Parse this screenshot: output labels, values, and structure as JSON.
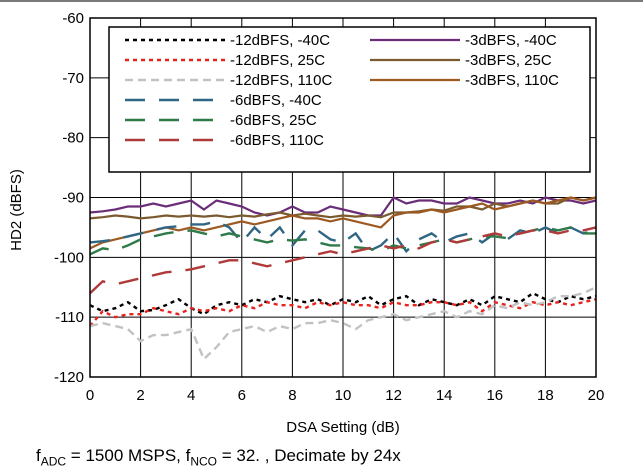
{
  "chart_data": {
    "type": "line",
    "xlabel": "DSA Setting (dB)",
    "ylabel": "HD2 (dBFS)",
    "xlim": [
      0,
      20
    ],
    "ylim": [
      -120,
      -60
    ],
    "xticks": [
      "0",
      "2",
      "4",
      "6",
      "8",
      "10",
      "12",
      "14",
      "16",
      "18",
      "20"
    ],
    "yticks": [
      "-60",
      "-70",
      "-80",
      "-90",
      "-100",
      "-110",
      "-120"
    ],
    "grid": true,
    "legend_position": "top-right",
    "series": [
      {
        "name": "-12dBFS, -40C",
        "color": "#000000",
        "dash": "dot",
        "x": [
          0,
          0.5,
          1,
          1.5,
          2,
          2.5,
          3,
          3.5,
          4,
          4.5,
          5,
          5.5,
          6,
          6.5,
          7,
          7.5,
          8,
          8.5,
          9,
          9.5,
          10,
          10.5,
          11,
          11.5,
          12,
          12.5,
          13,
          13.5,
          14,
          14.5,
          15,
          15.5,
          16,
          16.5,
          17,
          17.5,
          18,
          18.5,
          19,
          19.5,
          20
        ],
        "y": [
          -108,
          -109,
          -108.5,
          -107.5,
          -109,
          -108.8,
          -108,
          -107,
          -108.5,
          -109.5,
          -108,
          -107.5,
          -108,
          -107,
          -107.5,
          -106.5,
          -107,
          -107.5,
          -107,
          -108,
          -107,
          -107.5,
          -106.5,
          -108,
          -107,
          -106.5,
          -108,
          -107,
          -107.5,
          -108,
          -107,
          -108,
          -106.5,
          -107,
          -107.5,
          -106,
          -107,
          -107.5,
          -106.5,
          -107,
          -106.5
        ]
      },
      {
        "name": "-12dBFS, 25C",
        "color": "#e8231e",
        "dash": "dot",
        "x": [
          0,
          0.5,
          1,
          1.5,
          2,
          2.5,
          3,
          3.5,
          4,
          4.5,
          5,
          5.5,
          6,
          6.5,
          7,
          7.5,
          8,
          8.5,
          9,
          9.5,
          10,
          10.5,
          11,
          11.5,
          12,
          12.5,
          13,
          13.5,
          14,
          14.5,
          15,
          15.5,
          16,
          16.5,
          17,
          17.5,
          18,
          18.5,
          19,
          19.5,
          20
        ],
        "y": [
          -111.5,
          -109,
          -110,
          -109.5,
          -109.5,
          -108.5,
          -109,
          -109.5,
          -108.5,
          -109,
          -108.5,
          -109,
          -108,
          -108.5,
          -107.5,
          -108,
          -108,
          -108.5,
          -107.5,
          -108,
          -107.5,
          -108,
          -108,
          -108.5,
          -107.5,
          -108,
          -108,
          -107.5,
          -107.5,
          -108,
          -107.5,
          -109,
          -107.5,
          -108,
          -108.5,
          -107.5,
          -108,
          -107.5,
          -108,
          -107.5,
          -107
        ]
      },
      {
        "name": "-12dBFS, 110C",
        "color": "#c2c2c2",
        "dash": "dash-short",
        "x": [
          0,
          0.5,
          1,
          1.5,
          2,
          2.5,
          3,
          3.5,
          4,
          4.5,
          5,
          5.5,
          6,
          6.5,
          7,
          7.5,
          8,
          8.5,
          9,
          9.5,
          10,
          10.5,
          11,
          11.5,
          12,
          12.5,
          13,
          13.5,
          14,
          14.5,
          15,
          15.5,
          16,
          16.5,
          17,
          17.5,
          18,
          18.5,
          19,
          19.5,
          20
        ],
        "y": [
          -111.5,
          -111,
          -111.5,
          -112,
          -114,
          -113,
          -113,
          -112.5,
          -112,
          -117,
          -115,
          -112.5,
          -112,
          -111.5,
          -112.5,
          -111.5,
          -112,
          -111,
          -111,
          -110.5,
          -111,
          -112,
          -110.5,
          -110,
          -109.5,
          -110.5,
          -110,
          -109.5,
          -109,
          -110,
          -109,
          -109.5,
          -108,
          -108.5,
          -107.5,
          -108,
          -107.5,
          -106.5,
          -106.5,
          -106,
          -105
        ]
      },
      {
        "name": "-3dBFS, -40C",
        "color": "#6b2d78",
        "dash": "solid",
        "x": [
          0,
          0.5,
          1,
          1.5,
          2,
          2.5,
          3,
          3.5,
          4,
          4.5,
          5,
          5.5,
          6,
          6.5,
          7,
          7.5,
          8,
          8.5,
          9,
          9.5,
          10,
          10.5,
          11,
          11.5,
          12,
          12.5,
          13,
          13.5,
          14,
          14.5,
          15,
          15.5,
          16,
          16.5,
          17,
          17.5,
          18,
          18.5,
          19,
          19.5,
          20
        ],
        "y": [
          -92.5,
          -92.3,
          -92,
          -91.5,
          -91.5,
          -91,
          -91.5,
          -91,
          -90.5,
          -92,
          -90.5,
          -91,
          -91.5,
          -92.5,
          -93,
          -92.5,
          -91.5,
          -92.5,
          -92.5,
          -91.5,
          -92,
          -92.5,
          -93,
          -93,
          -90,
          -91,
          -90.5,
          -90.5,
          -91,
          -91,
          -90,
          -90.5,
          -91,
          -91,
          -90.5,
          -91,
          -90,
          -90.5,
          -90.5,
          -91,
          -90.5
        ]
      },
      {
        "name": "-3dBFS, 25C",
        "color": "#7a5a2e",
        "dash": "solid",
        "x": [
          0,
          0.5,
          1,
          1.5,
          2,
          2.5,
          3,
          3.5,
          4,
          4.5,
          5,
          5.5,
          6,
          6.5,
          7,
          7.5,
          8,
          8.5,
          9,
          9.5,
          10,
          10.5,
          11,
          11.5,
          12,
          12.5,
          13,
          13.5,
          14,
          14.5,
          15,
          15.5,
          16,
          16.5,
          17,
          17.5,
          18,
          18.5,
          19,
          19.5,
          20
        ],
        "y": [
          -93.5,
          -93.3,
          -93,
          -93.2,
          -93.5,
          -93.3,
          -93,
          -93.2,
          -93,
          -93.2,
          -93,
          -93.3,
          -93,
          -93.2,
          -92.8,
          -92.5,
          -93,
          -92.7,
          -93,
          -93.3,
          -93,
          -93.2,
          -93,
          -93.3,
          -92.5,
          -92.5,
          -92.3,
          -92,
          -92.2,
          -91.5,
          -91.5,
          -92,
          -91,
          -91.5,
          -91,
          -90.5,
          -91,
          -91,
          -90,
          -90.5,
          -90
        ]
      },
      {
        "name": "-3dBFS, 110C",
        "color": "#9c5a22",
        "dash": "solid",
        "x": [
          0,
          0.5,
          1,
          1.5,
          2,
          2.5,
          3,
          3.5,
          4,
          4.5,
          5,
          5.5,
          6,
          6.5,
          7,
          7.5,
          8,
          8.5,
          9,
          9.5,
          10,
          10.5,
          11,
          11.5,
          12,
          12.5,
          13,
          13.5,
          14,
          14.5,
          15,
          15.5,
          16,
          16.5,
          17,
          17.5,
          18,
          18.5,
          19,
          19.5,
          20
        ],
        "y": [
          -98.5,
          -97.5,
          -97,
          -96.5,
          -96,
          -95.5,
          -95,
          -95.5,
          -95,
          -95.5,
          -95,
          -94.5,
          -94,
          -94.5,
          -94,
          -93.5,
          -93,
          -93.5,
          -93.5,
          -94,
          -93.5,
          -94,
          -94.5,
          -95,
          -93,
          -92.5,
          -92.5,
          -92,
          -92.5,
          -92,
          -91.5,
          -91,
          -92,
          -91.5,
          -91,
          -90.5,
          -91,
          -90.5,
          -90,
          -90.5,
          -90
        ]
      },
      {
        "name": "-6dBFS, -40C",
        "color": "#2f6683",
        "dash": "dash-long",
        "x": [
          0,
          0.5,
          1,
          1.5,
          2,
          2.5,
          3,
          3.5,
          4,
          4.5,
          5,
          5.5,
          6,
          6.5,
          7,
          7.5,
          8,
          8.5,
          9,
          9.5,
          10,
          10.5,
          11,
          11.5,
          12,
          12.5,
          13,
          13.5,
          14,
          14.5,
          15,
          15.5,
          16,
          16.5,
          17,
          17.5,
          18,
          18.5,
          19,
          19.5,
          20
        ],
        "y": [
          -97.5,
          -97.3,
          -97,
          -96.5,
          -96,
          -95.5,
          -95,
          -94.8,
          -94.5,
          -94.5,
          -94,
          -95,
          -97.5,
          -95,
          -97,
          -95,
          -98,
          -95.5,
          -95.5,
          -97,
          -97.5,
          -96,
          -99,
          -98,
          -96,
          -99,
          -97,
          -96,
          -97.5,
          -96.5,
          -96,
          -97.5,
          -96,
          -97,
          -95.5,
          -96,
          -95,
          -96,
          -95,
          -96,
          -95.5
        ]
      },
      {
        "name": "-6dBFS, 25C",
        "color": "#2e7a48",
        "dash": "dash-long",
        "x": [
          0,
          0.5,
          1,
          1.5,
          2,
          2.5,
          3,
          3.5,
          4,
          4.5,
          5,
          5.5,
          6,
          6.5,
          7,
          7.5,
          8,
          8.5,
          9,
          9.5,
          10,
          10.5,
          11,
          11.5,
          12,
          12.5,
          13,
          13.5,
          14,
          14.5,
          15,
          15.5,
          16,
          16.5,
          17,
          17.5,
          18,
          18.5,
          19,
          19.5,
          20
        ],
        "y": [
          -99.5,
          -98.5,
          -98.8,
          -98,
          -97,
          -96.5,
          -96,
          -95.7,
          -95.5,
          -96,
          -96.5,
          -96,
          -96.5,
          -97,
          -97.5,
          -97,
          -97.2,
          -97,
          -97.5,
          -98,
          -98,
          -98.3,
          -98.5,
          -99,
          -98,
          -98.5,
          -98,
          -97.5,
          -97,
          -97.5,
          -97,
          -96.5,
          -96.5,
          -96.8,
          -96,
          -95.5,
          -95,
          -95.5,
          -95,
          -96,
          -96
        ]
      },
      {
        "name": "-6dBFS, 110C",
        "color": "#b03a3a",
        "dash": "dash-long",
        "x": [
          0,
          0.5,
          1,
          1.5,
          2,
          2.5,
          3,
          3.5,
          4,
          4.5,
          5,
          5.5,
          6,
          6.5,
          7,
          7.5,
          8,
          8.5,
          9,
          9.5,
          10,
          10.5,
          11,
          11.5,
          12,
          12.5,
          13,
          13.5,
          14,
          14.5,
          15,
          15.5,
          16,
          16.5,
          17,
          17.5,
          18,
          18.5,
          19,
          19.5,
          20
        ],
        "y": [
          -106,
          -104,
          -104.5,
          -104,
          -103.5,
          -103,
          -102.5,
          -102.3,
          -102,
          -101.5,
          -101,
          -100.5,
          -100.5,
          -101,
          -101.5,
          -101,
          -100.5,
          -100,
          -99.5,
          -99,
          -99.5,
          -99,
          -98.5,
          -98,
          -98.5,
          -98,
          -98.5,
          -97.5,
          -97,
          -97.5,
          -97,
          -96.5,
          -96,
          -96.5,
          -96,
          -95.5,
          -95.5,
          -96,
          -95.5,
          -95.5,
          -95
        ]
      }
    ]
  },
  "caption": {
    "f_adc_main": "f",
    "f_adc_sub": "ADC",
    "f_adc_text": " = 1500 MSPS, f",
    "f_nco_sub": "NCO",
    "tail": " = 32. , Decimate by 24x"
  }
}
